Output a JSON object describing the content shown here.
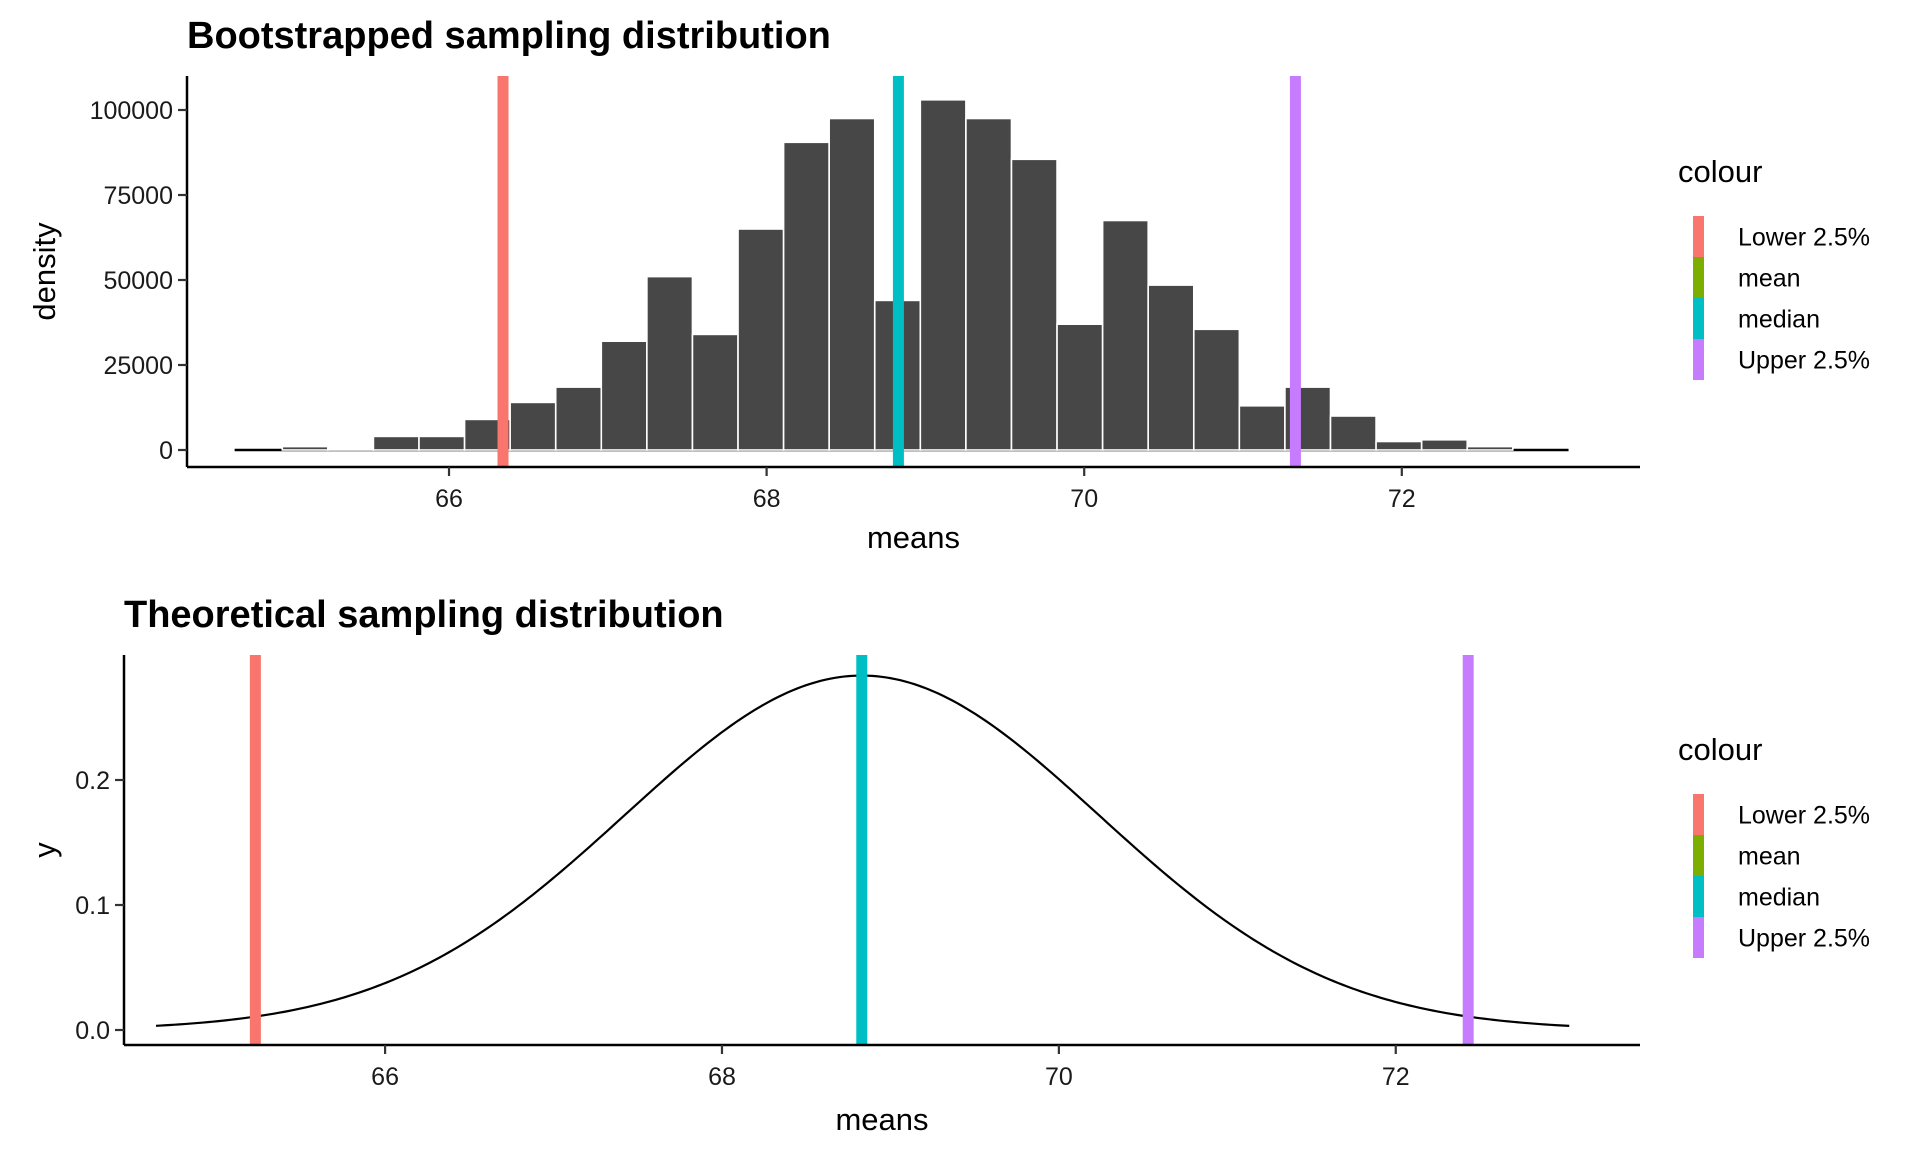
{
  "chart_data": [
    {
      "type": "bar",
      "title": "Bootstrapped sampling distribution",
      "xlabel": "means",
      "ylabel": "density",
      "xlim": [
        64.35,
        73.5
      ],
      "ylim": [
        -5000,
        110000
      ],
      "x_ticks": [
        66,
        68,
        70,
        72
      ],
      "x_tick_labels": [
        "66",
        "68",
        "70",
        "72"
      ],
      "y_ticks": [
        0,
        25000,
        50000,
        75000,
        100000
      ],
      "y_tick_labels": [
        "0",
        "25000",
        "50000",
        "75000",
        "100000"
      ],
      "grid": false,
      "baseline_range": [
        64.65,
        73.05
      ],
      "bin_width": 0.287,
      "bins": [
        {
          "x0": 64.95,
          "value": 1000
        },
        {
          "x0": 65.237,
          "value": 0
        },
        {
          "x0": 65.524,
          "value": 4000
        },
        {
          "x0": 65.811,
          "value": 4000
        },
        {
          "x0": 66.098,
          "value": 9000
        },
        {
          "x0": 66.385,
          "value": 14000
        },
        {
          "x0": 66.672,
          "value": 18500
        },
        {
          "x0": 66.959,
          "value": 32000
        },
        {
          "x0": 67.246,
          "value": 51000
        },
        {
          "x0": 67.533,
          "value": 34000
        },
        {
          "x0": 67.82,
          "value": 65000
        },
        {
          "x0": 68.107,
          "value": 90500
        },
        {
          "x0": 68.394,
          "value": 97500
        },
        {
          "x0": 68.681,
          "value": 44000
        },
        {
          "x0": 68.968,
          "value": 103000
        },
        {
          "x0": 69.255,
          "value": 97500
        },
        {
          "x0": 69.542,
          "value": 85500
        },
        {
          "x0": 69.829,
          "value": 37000
        },
        {
          "x0": 70.116,
          "value": 67500
        },
        {
          "x0": 70.403,
          "value": 48500
        },
        {
          "x0": 70.69,
          "value": 35500
        },
        {
          "x0": 70.977,
          "value": 13000
        },
        {
          "x0": 71.264,
          "value": 18500
        },
        {
          "x0": 71.551,
          "value": 10000
        },
        {
          "x0": 71.838,
          "value": 2500
        },
        {
          "x0": 72.125,
          "value": 3000
        },
        {
          "x0": 72.412,
          "value": 1000
        }
      ],
      "vlines": [
        {
          "name": "Lower 2.5%",
          "x": 66.34,
          "color": "#F8766D"
        },
        {
          "name": "median",
          "x": 68.83,
          "color": "#00BFC4"
        },
        {
          "name": "Upper 2.5%",
          "x": 71.33,
          "color": "#C77CFF"
        }
      ],
      "legend": {
        "title": "colour",
        "position": "right",
        "entries": [
          {
            "label": "Lower 2.5%",
            "color": "#F8766D"
          },
          {
            "label": "mean",
            "color": "#7CAE00"
          },
          {
            "label": "median",
            "color": "#00BFC4"
          },
          {
            "label": "Upper 2.5%",
            "color": "#C77CFF"
          }
        ]
      }
    },
    {
      "type": "line",
      "title": "Theoretical sampling distribution",
      "xlabel": "means",
      "ylabel": "y",
      "xlim": [
        64.45,
        73.45
      ],
      "ylim": [
        -0.012,
        0.3
      ],
      "x_ticks": [
        66,
        68,
        70,
        72
      ],
      "x_tick_labels": [
        "66",
        "68",
        "70",
        "72"
      ],
      "y_ticks": [
        0.0,
        0.1,
        0.2
      ],
      "y_tick_labels": [
        "0.0",
        "0.1",
        "0.2"
      ],
      "grid": false,
      "curve": {
        "distribution": "normal",
        "mean": 68.83,
        "sd": 1.407,
        "x_range": [
          64.64,
          73.03
        ]
      },
      "vlines": [
        {
          "name": "Lower 2.5%",
          "x": 65.23,
          "color": "#F8766D"
        },
        {
          "name": "median",
          "x": 68.83,
          "color": "#00BFC4"
        },
        {
          "name": "Upper 2.5%",
          "x": 72.43,
          "color": "#C77CFF"
        }
      ],
      "legend": {
        "title": "colour",
        "position": "right",
        "entries": [
          {
            "label": "Lower 2.5%",
            "color": "#F8766D"
          },
          {
            "label": "mean",
            "color": "#7CAE00"
          },
          {
            "label": "median",
            "color": "#00BFC4"
          },
          {
            "label": "Upper 2.5%",
            "color": "#C77CFF"
          }
        ]
      }
    }
  ]
}
